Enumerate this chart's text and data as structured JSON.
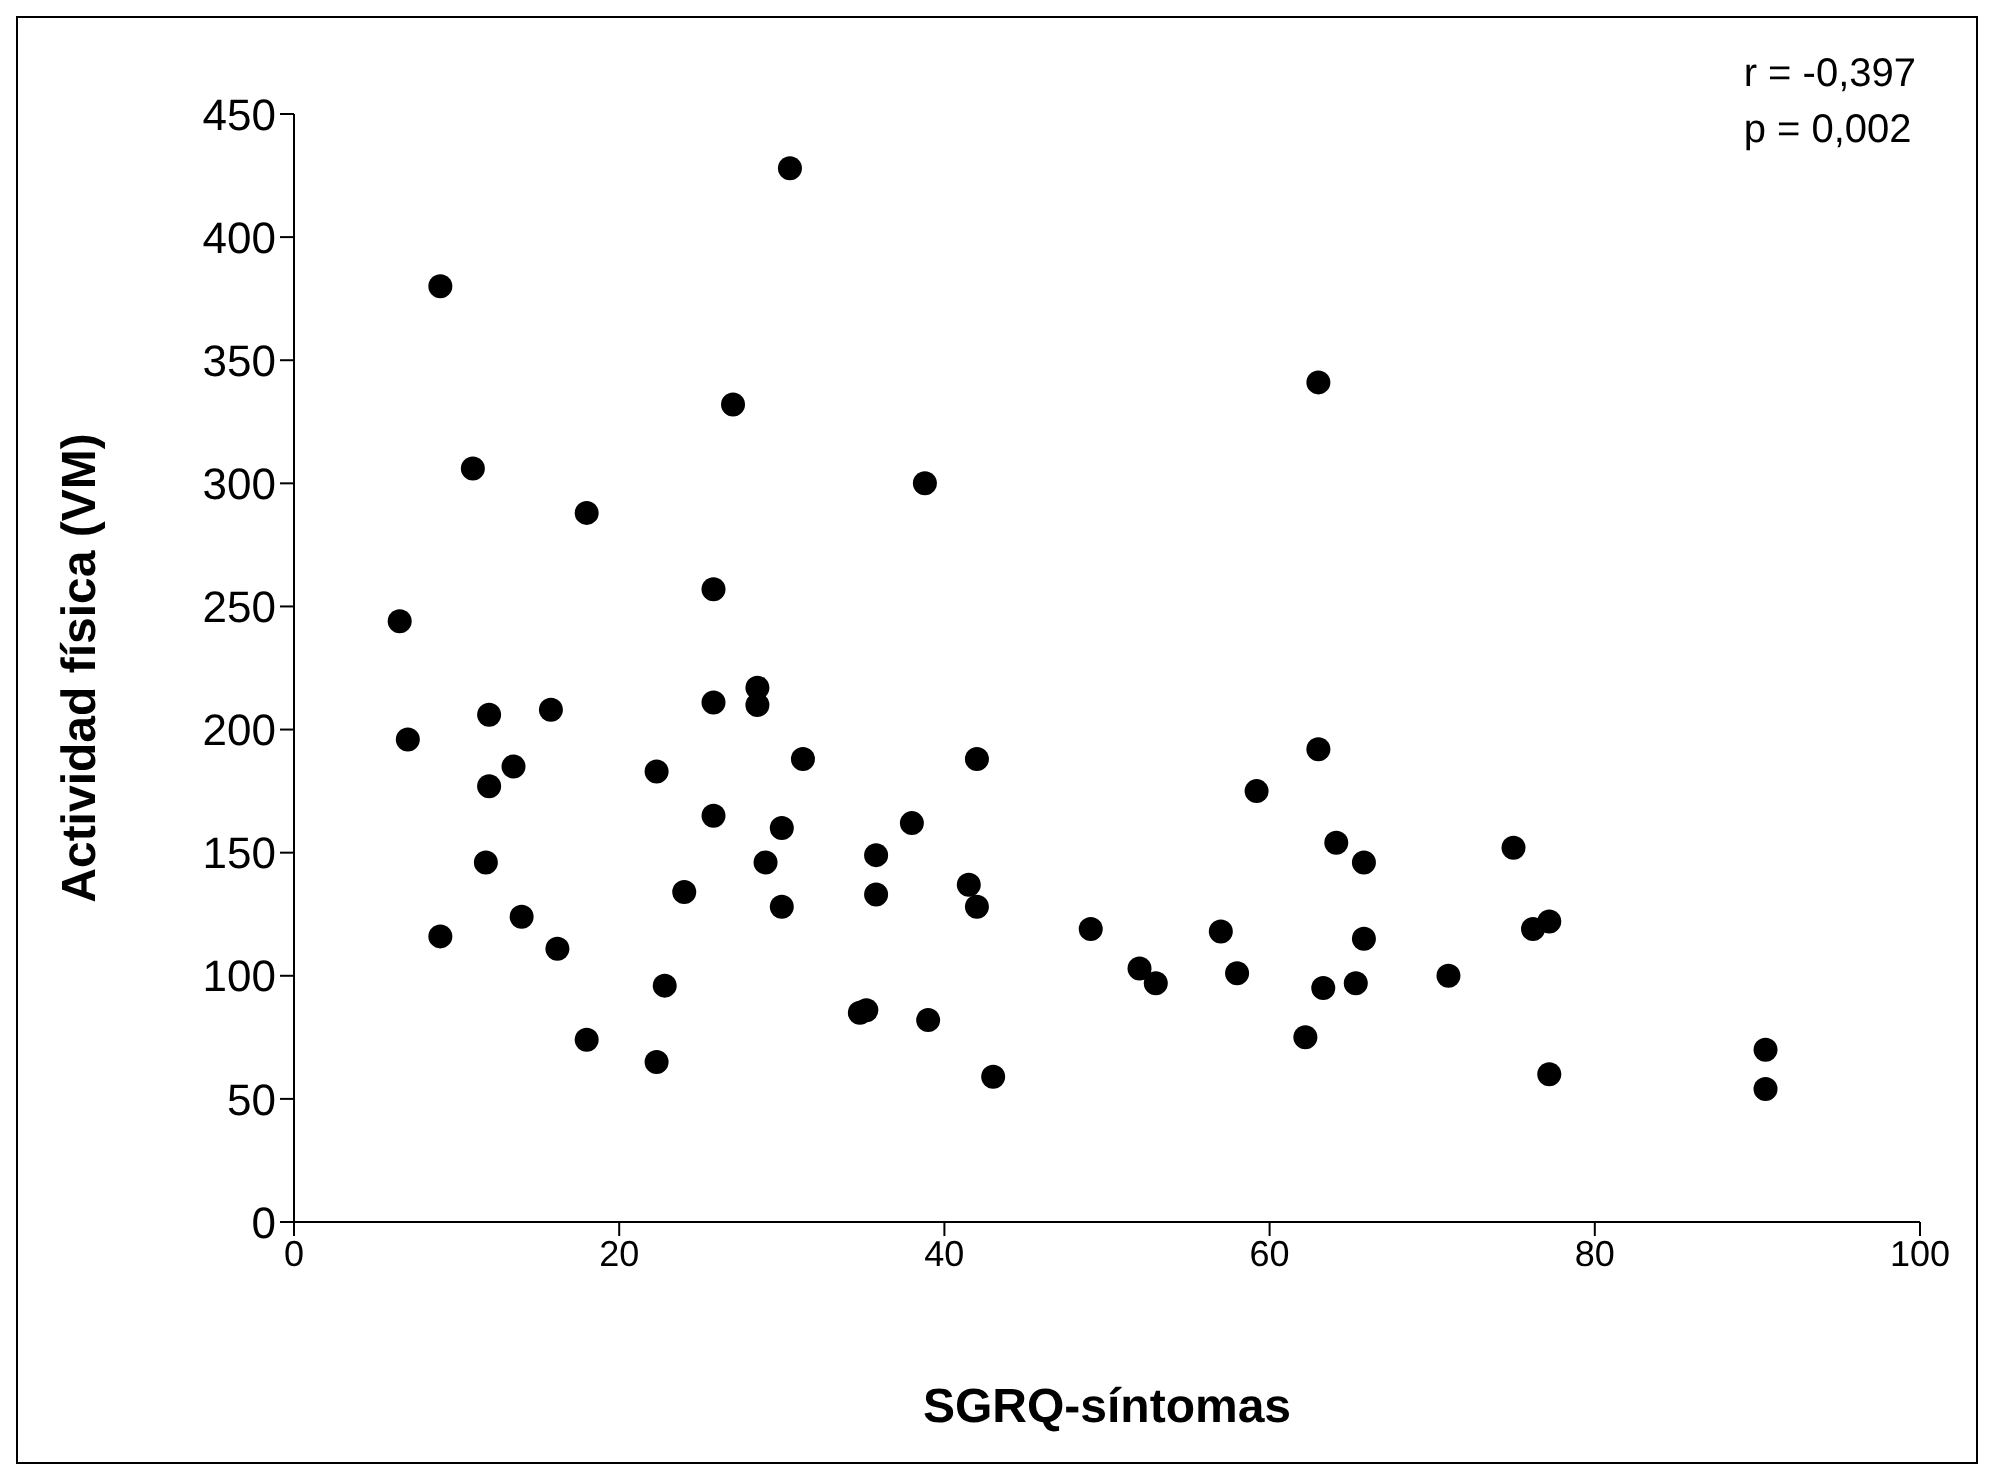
{
  "chart_data": {
    "type": "scatter",
    "xlabel": "SGRQ-síntomas",
    "ylabel": "Actividad física (VM)",
    "annotations": [
      "r = -0,397",
      "p = 0,002"
    ],
    "xlim": [
      0,
      100
    ],
    "xticks": [
      0,
      20,
      40,
      60,
      80,
      100
    ],
    "ylim": [
      0,
      450
    ],
    "yticks": [
      0,
      50,
      100,
      150,
      200,
      250,
      300,
      350,
      400,
      450
    ],
    "grid": false,
    "marker": "circle",
    "series": [
      {
        "color": "#000000",
        "x": [
          6.5,
          7,
          9,
          9,
          11,
          12,
          12,
          11.8,
          13.5,
          14,
          15.8,
          16.2,
          18,
          18,
          22.3,
          22.3,
          22.8,
          24,
          25.8,
          25.8,
          25.8,
          27,
          28.5,
          28.5,
          29,
          30,
          30,
          30.5,
          31.3,
          34.8,
          35.2,
          35.8,
          35.8,
          38,
          38.8,
          39,
          41.5,
          42,
          42,
          43,
          49,
          52,
          53,
          57,
          58,
          59.2,
          62.2,
          63,
          63,
          63.3,
          64.1,
          65.3,
          65.8,
          65.8,
          71,
          75,
          76.2,
          77.2,
          77.2,
          90.5,
          90.5
        ],
        "values": [
          244,
          196,
          380,
          116,
          306,
          206,
          177,
          146,
          185,
          124,
          208,
          111,
          288,
          74,
          183,
          65,
          96,
          134,
          257,
          211,
          165,
          332,
          217,
          210,
          146,
          160,
          128,
          428,
          188,
          85,
          86,
          149,
          133,
          162,
          300,
          82,
          137,
          188,
          128,
          59,
          119,
          103,
          97,
          118,
          101,
          175,
          75,
          341,
          192,
          95,
          154,
          97,
          146,
          115,
          100,
          152,
          119,
          122,
          60,
          70,
          54
        ]
      }
    ]
  }
}
